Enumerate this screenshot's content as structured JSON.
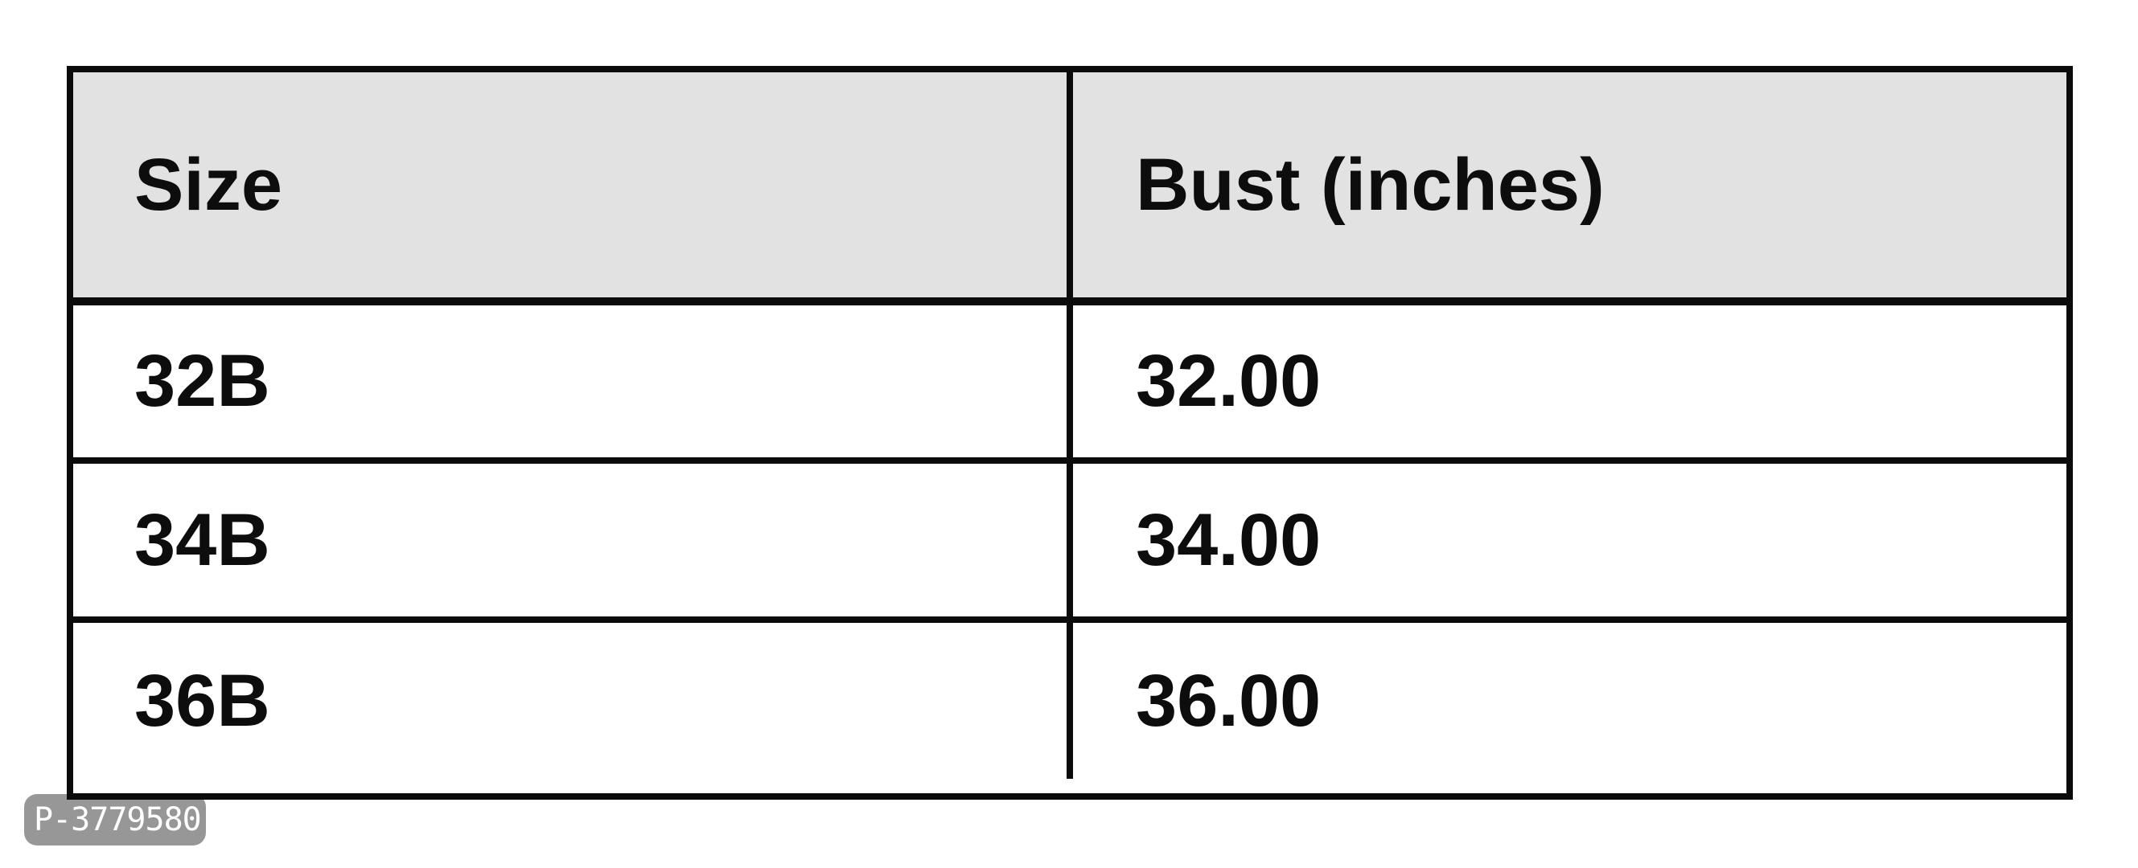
{
  "chart_data": {
    "type": "table",
    "title": "",
    "columns": [
      "Size",
      "Bust (inches)"
    ],
    "rows": [
      [
        "32B",
        "32.00"
      ],
      [
        "34B",
        "34.00"
      ],
      [
        "36B",
        "36.00"
      ]
    ]
  },
  "table": {
    "columns": [
      "Size",
      "Bust (inches)"
    ],
    "rows": [
      [
        "32B",
        "32.00"
      ],
      [
        "34B",
        "34.00"
      ],
      [
        "36B",
        "36.00"
      ]
    ]
  },
  "badge": {
    "label": "P-3779580"
  },
  "colors": {
    "header_bg": "#e2e2e2",
    "row_bg": "#ffffff",
    "border": "#0b0b0b",
    "text": "#0d0d0d",
    "badge_bg": "rgba(128,128,128,0.82)",
    "badge_text": "#ffffff"
  }
}
